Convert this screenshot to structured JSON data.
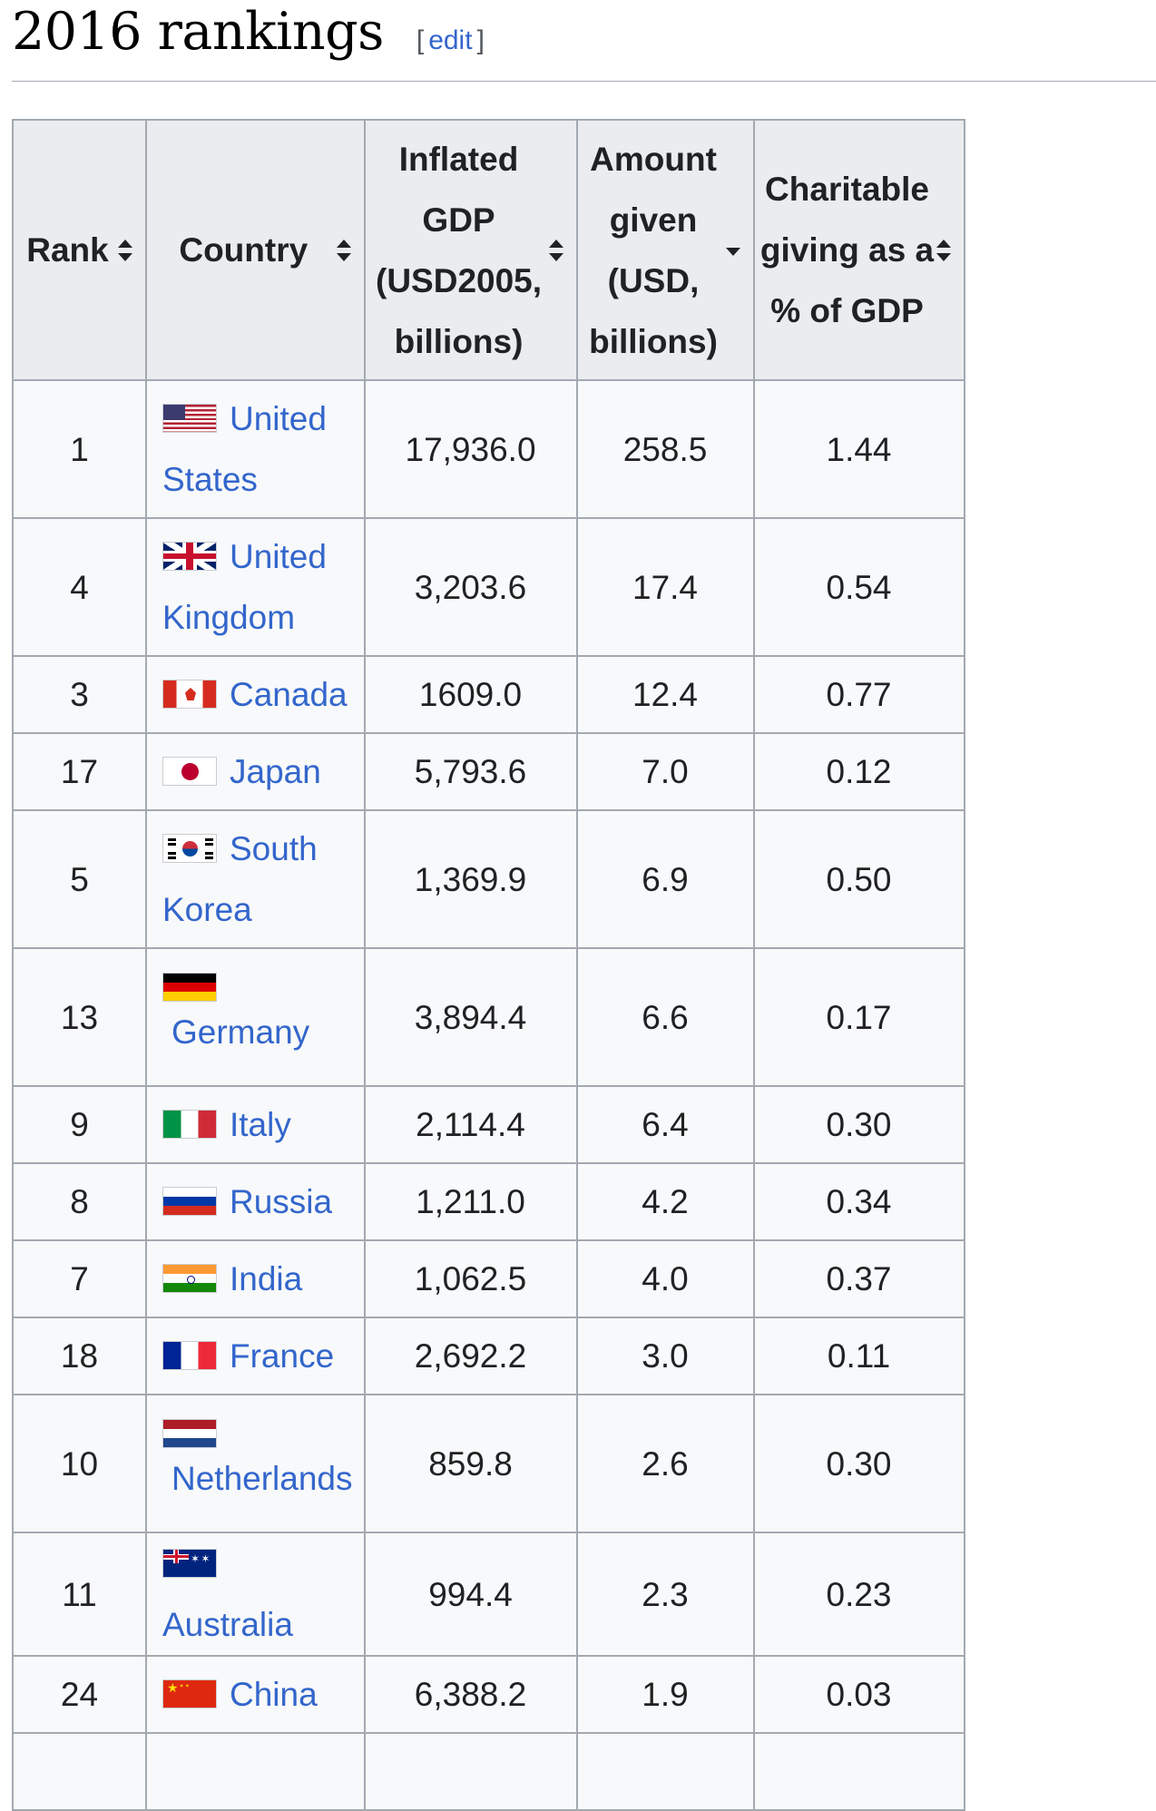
{
  "section": {
    "title": "2016 rankings",
    "edit_open": "[",
    "edit_label": "edit",
    "edit_close": "]"
  },
  "table": {
    "headers": {
      "rank": "Rank",
      "country": "Country",
      "gdp": "Inflated GDP (USD2005, billions)",
      "amount": "Amount given (USD, billions)",
      "percent": "Charitable giving as a % of GDP"
    },
    "rows": [
      {
        "rank": "1",
        "country": "United States",
        "gdp": "17,936.0",
        "amount": "258.5",
        "percent": "1.44"
      },
      {
        "rank": "4",
        "country": "United Kingdom",
        "gdp": "3,203.6",
        "amount": "17.4",
        "percent": "0.54"
      },
      {
        "rank": "3",
        "country": "Canada",
        "gdp": "1609.0",
        "amount": "12.4",
        "percent": "0.77"
      },
      {
        "rank": "17",
        "country": "Japan",
        "gdp": "5,793.6",
        "amount": "7.0",
        "percent": "0.12"
      },
      {
        "rank": "5",
        "country": "South Korea",
        "gdp": "1,369.9",
        "amount": "6.9",
        "percent": "0.50"
      },
      {
        "rank": "13",
        "country": "Germany",
        "gdp": "3,894.4",
        "amount": "6.6",
        "percent": "0.17"
      },
      {
        "rank": "9",
        "country": "Italy",
        "gdp": "2,114.4",
        "amount": "6.4",
        "percent": "0.30"
      },
      {
        "rank": "8",
        "country": "Russia",
        "gdp": "1,211.0",
        "amount": "4.2",
        "percent": "0.34"
      },
      {
        "rank": "7",
        "country": "India",
        "gdp": "1,062.5",
        "amount": "4.0",
        "percent": "0.37"
      },
      {
        "rank": "18",
        "country": "France",
        "gdp": "2,692.2",
        "amount": "3.0",
        "percent": "0.11"
      },
      {
        "rank": "10",
        "country": "Netherlands",
        "gdp": "859.8",
        "amount": "2.6",
        "percent": "0.30"
      },
      {
        "rank": "11",
        "country": "Australia",
        "gdp": "994.4",
        "amount": "2.3",
        "percent": "0.23"
      },
      {
        "rank": "24",
        "country": "China",
        "gdp": "6,388.2",
        "amount": "1.9",
        "percent": "0.03"
      }
    ]
  },
  "flags": [
    "us-flag-icon",
    "uk-flag-icon",
    "canada-flag-icon",
    "japan-flag-icon",
    "south-korea-flag-icon",
    "germany-flag-icon",
    "italy-flag-icon",
    "russia-flag-icon",
    "india-flag-icon",
    "france-flag-icon",
    "netherlands-flag-icon",
    "australia-flag-icon",
    "china-flag-icon"
  ]
}
